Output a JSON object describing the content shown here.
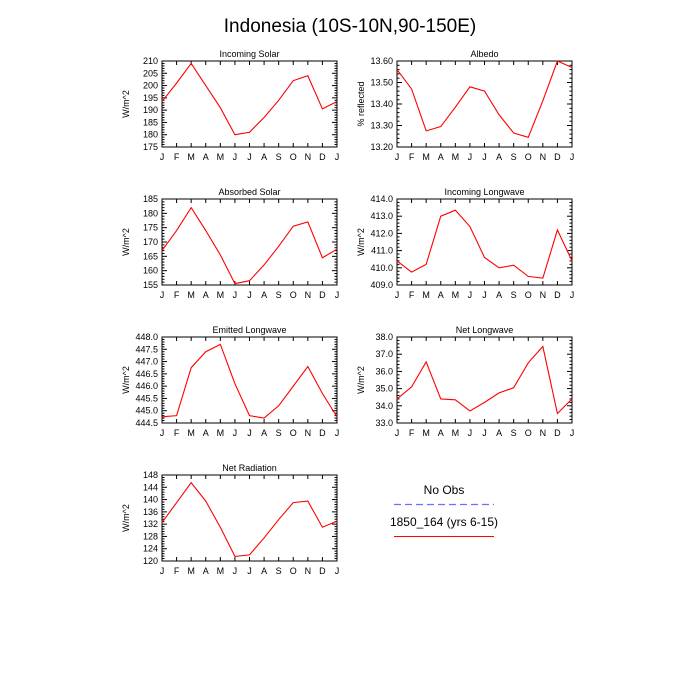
{
  "figure": {
    "title": "Indonesia (10S-10N,90-150E)"
  },
  "chart_data": [
    {
      "type": "line",
      "title": "Incoming Solar",
      "ylabel": "W/m^2",
      "x": [
        "J",
        "F",
        "M",
        "A",
        "M",
        "J",
        "J",
        "A",
        "S",
        "O",
        "N",
        "D",
        "J"
      ],
      "ylim": [
        175,
        210
      ],
      "yticks": [
        "175",
        "180",
        "185",
        "190",
        "195",
        "200",
        "205",
        "210"
      ],
      "series": [
        {
          "name": "1850_164 (yrs 6-15)",
          "color": "#ff0000",
          "values": [
            193.5,
            201,
            209,
            200,
            191,
            180,
            181,
            187,
            194,
            202,
            204,
            190.5,
            193.5
          ]
        }
      ]
    },
    {
      "type": "line",
      "title": "Albedo",
      "ylabel": "% reflected",
      "x": [
        "J",
        "F",
        "M",
        "A",
        "M",
        "J",
        "J",
        "A",
        "S",
        "O",
        "N",
        "D",
        "J"
      ],
      "ylim": [
        13.2,
        13.6
      ],
      "yticks": [
        "13.20",
        "13.30",
        "13.40",
        "13.50",
        "13.60"
      ],
      "series": [
        {
          "name": "1850_164 (yrs 6-15)",
          "color": "#ff0000",
          "values": [
            13.56,
            13.47,
            13.275,
            13.295,
            13.385,
            13.48,
            13.46,
            13.35,
            13.265,
            13.245,
            13.415,
            13.6,
            13.57
          ]
        }
      ]
    },
    {
      "type": "line",
      "title": "Absorbed Solar",
      "ylabel": "W/m^2",
      "x": [
        "J",
        "F",
        "M",
        "A",
        "M",
        "J",
        "J",
        "A",
        "S",
        "O",
        "N",
        "D",
        "J"
      ],
      "ylim": [
        155,
        185
      ],
      "yticks": [
        "155",
        "160",
        "165",
        "170",
        "175",
        "180",
        "185"
      ],
      "series": [
        {
          "name": "1850_164 (yrs 6-15)",
          "color": "#ff0000",
          "values": [
            167,
            174,
            182,
            174,
            165.5,
            155.5,
            156.5,
            162,
            168.5,
            175.5,
            177,
            164.5,
            167.5
          ]
        }
      ]
    },
    {
      "type": "line",
      "title": "Incoming Longwave",
      "ylabel": "W/m^2",
      "x": [
        "J",
        "F",
        "M",
        "A",
        "M",
        "J",
        "J",
        "A",
        "S",
        "O",
        "N",
        "D",
        "J"
      ],
      "ylim": [
        409,
        414
      ],
      "yticks": [
        "409.0",
        "410.0",
        "411.0",
        "412.0",
        "413.0",
        "414.0"
      ],
      "series": [
        {
          "name": "1850_164 (yrs 6-15)",
          "color": "#ff0000",
          "values": [
            410.4,
            409.75,
            410.2,
            413.0,
            413.35,
            412.4,
            410.6,
            410.0,
            410.15,
            409.5,
            409.4,
            412.2,
            410.4
          ]
        }
      ]
    },
    {
      "type": "line",
      "title": "Emitted Longwave",
      "ylabel": "W/m^2",
      "x": [
        "J",
        "F",
        "M",
        "A",
        "M",
        "J",
        "J",
        "A",
        "S",
        "O",
        "N",
        "D",
        "J"
      ],
      "ylim": [
        444.5,
        448
      ],
      "yticks": [
        "444.5",
        "445.0",
        "445.5",
        "446.0",
        "446.5",
        "447.0",
        "447.5",
        "448.0"
      ],
      "series": [
        {
          "name": "1850_164 (yrs 6-15)",
          "color": "#ff0000",
          "values": [
            444.75,
            444.8,
            446.75,
            447.4,
            447.7,
            446.1,
            444.8,
            444.7,
            445.2,
            446.0,
            446.8,
            445.7,
            444.75
          ]
        }
      ]
    },
    {
      "type": "line",
      "title": "Net Longwave",
      "ylabel": "W/m^2",
      "x": [
        "J",
        "F",
        "M",
        "A",
        "M",
        "J",
        "J",
        "A",
        "S",
        "O",
        "N",
        "D",
        "J"
      ],
      "ylim": [
        33,
        38
      ],
      "yticks": [
        "33.0",
        "34.0",
        "35.0",
        "36.0",
        "37.0",
        "38.0"
      ],
      "series": [
        {
          "name": "1850_164 (yrs 6-15)",
          "color": "#ff0000",
          "values": [
            34.4,
            35.1,
            36.55,
            34.4,
            34.35,
            33.7,
            34.2,
            34.75,
            35.05,
            36.5,
            37.45,
            33.55,
            34.4
          ]
        }
      ]
    },
    {
      "type": "line",
      "title": "Net Radiation",
      "ylabel": "W/m^2",
      "x": [
        "J",
        "F",
        "M",
        "A",
        "M",
        "J",
        "J",
        "A",
        "S",
        "O",
        "N",
        "D",
        "J"
      ],
      "ylim": [
        120,
        148
      ],
      "yticks": [
        "120",
        "124",
        "128",
        "132",
        "136",
        "140",
        "144",
        "148"
      ],
      "series": [
        {
          "name": "1850_164 (yrs 6-15)",
          "color": "#ff0000",
          "values": [
            132.5,
            139,
            145.5,
            139.5,
            131,
            121.5,
            122,
            127.5,
            133.5,
            139,
            139.5,
            131,
            133
          ]
        }
      ]
    }
  ],
  "legend": {
    "entries": [
      {
        "label": "No Obs",
        "color": "#6e6eff",
        "style": "dashed"
      },
      {
        "label": "1850_164 (yrs 6-15)",
        "color": "#ff0000",
        "style": "solid"
      }
    ]
  }
}
